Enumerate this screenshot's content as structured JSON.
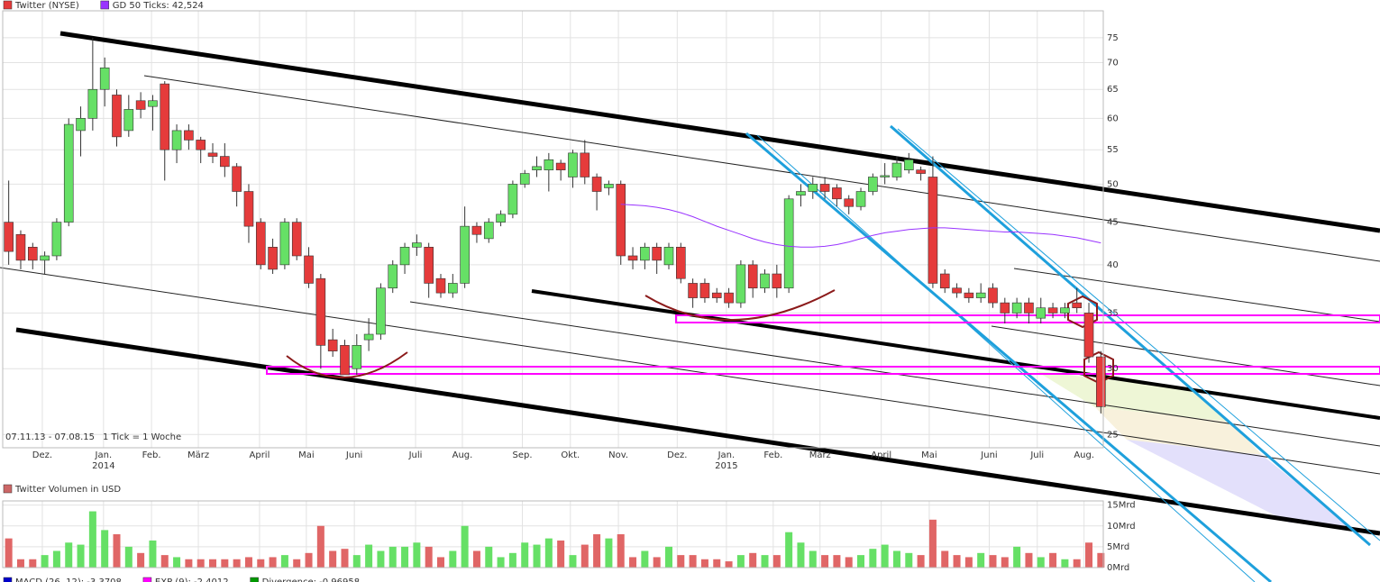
{
  "chart_data": [
    {
      "type": "candlestick",
      "series": [
        {
          "name": "Twitter (NYSE)",
          "color": "#e53b3b",
          "up_color": "#66e066",
          "open": [
            45,
            43.5,
            42,
            40.5,
            41,
            45,
            58,
            60,
            65,
            64,
            58,
            63,
            62,
            66,
            55,
            58,
            56.5,
            54.5,
            54,
            52.5,
            49,
            45,
            42,
            40,
            45,
            41,
            38.5,
            32.5,
            32,
            30,
            32.5,
            33,
            37.5,
            40,
            42,
            42,
            38.5,
            37,
            38,
            44.5,
            43,
            45,
            46,
            50,
            52,
            52,
            53,
            51,
            54.5,
            51,
            49.5,
            50,
            41,
            40.5,
            42,
            40,
            42,
            38,
            38,
            37,
            37,
            36,
            40,
            37.5,
            39,
            37.5,
            48.5,
            49,
            50,
            49.5,
            48,
            47,
            49,
            51,
            51,
            52,
            52,
            51,
            39,
            37.5,
            37,
            36.5,
            37.5,
            36,
            35,
            36,
            34.5,
            35.5,
            35,
            36,
            35,
            31
          ],
          "high": [
            50.5,
            44,
            42.5,
            41.5,
            45.5,
            60,
            62,
            75,
            71,
            65,
            64,
            64.5,
            64,
            66.5,
            59,
            59,
            57,
            56,
            56,
            53,
            50,
            45.5,
            43,
            45.5,
            45.5,
            42,
            39,
            33.5,
            32.5,
            33,
            34.5,
            38,
            40.5,
            42.5,
            43.5,
            42.5,
            39,
            39,
            47,
            45,
            45.5,
            46.5,
            50.5,
            52,
            54,
            54.5,
            53.5,
            55,
            56.5,
            51.5,
            50.5,
            50.5,
            42,
            42.5,
            42.5,
            42.5,
            42.5,
            38.5,
            38.5,
            37.5,
            37.5,
            40.5,
            40.5,
            39.5,
            40,
            48.5,
            50,
            51,
            51,
            50,
            48.5,
            49.5,
            51.5,
            53,
            54,
            54.5,
            52.5,
            54,
            39.5,
            38,
            37.5,
            38,
            38,
            36.5,
            36.5,
            36.5,
            36.5,
            36,
            36,
            37.5,
            36,
            31.5
          ],
          "low": [
            40,
            39.5,
            39.5,
            39,
            40.5,
            44.5,
            54,
            58,
            62,
            55.5,
            57,
            60,
            58,
            50.5,
            53,
            55,
            53,
            53,
            51,
            47,
            42.5,
            39.5,
            39,
            39.5,
            40.5,
            37.5,
            30,
            31,
            29.5,
            29.5,
            31.5,
            32.5,
            37,
            39,
            41,
            36.5,
            36.5,
            36.5,
            37.5,
            42.5,
            42.5,
            44.5,
            45.5,
            49.5,
            51,
            49,
            50.5,
            49.5,
            50,
            46.5,
            48.5,
            40,
            39.5,
            39.5,
            39,
            39.5,
            38,
            35.5,
            36,
            36,
            35.5,
            35.5,
            36.5,
            37,
            36.5,
            37,
            47,
            48,
            48,
            47,
            46,
            46.5,
            48.5,
            50,
            50.5,
            51.5,
            50.5,
            37.5,
            37,
            36.5,
            36,
            36,
            35.5,
            34,
            34.5,
            34,
            34,
            34.5,
            34.5,
            35,
            30.5,
            26.5
          ],
          "close": [
            41.5,
            40.5,
            40.5,
            41,
            45,
            59,
            60,
            65,
            69,
            57,
            61.5,
            61.5,
            63,
            55,
            58,
            56.5,
            55,
            54,
            52.5,
            49,
            44.5,
            40,
            39.5,
            45,
            41,
            38,
            32,
            31.5,
            29.5,
            32,
            33,
            37.5,
            40,
            42,
            42.5,
            38,
            37,
            38,
            44.5,
            43.5,
            45,
            46,
            50,
            51.5,
            52.5,
            53.5,
            52,
            54.5,
            51,
            49,
            50,
            41,
            40.5,
            42,
            40.5,
            42,
            38.5,
            36.5,
            36.5,
            36.5,
            36,
            40,
            37.5,
            39,
            37.5,
            48,
            49,
            50,
            49,
            48,
            47,
            49,
            51,
            51.2,
            53,
            53.5,
            51.5,
            38,
            37.5,
            37,
            36.5,
            37,
            36,
            35,
            36,
            35,
            35.5,
            35,
            35.5,
            35.5,
            31,
            27
          ]
        },
        {
          "name": "GD 50 Ticks: 42,524",
          "color": "#9933ff",
          "values": [
            null,
            null,
            null,
            null,
            null,
            null,
            null,
            null,
            null,
            null,
            null,
            null,
            null,
            null,
            null,
            null,
            null,
            null,
            null,
            null,
            null,
            null,
            null,
            null,
            null,
            null,
            null,
            null,
            null,
            null,
            null,
            null,
            null,
            null,
            null,
            null,
            null,
            null,
            null,
            null,
            null,
            null,
            null,
            null,
            null,
            null,
            null,
            null,
            null,
            null,
            null,
            47.3,
            47.2,
            47.1,
            46.9,
            46.6,
            46.2,
            45.7,
            45.1,
            44.5,
            44,
            43.5,
            43,
            42.6,
            42.3,
            42.1,
            42,
            42,
            42.1,
            42.3,
            42.6,
            43,
            43.4,
            43.7,
            43.9,
            44.1,
            44.2,
            44.3,
            44.3,
            44.2,
            44.1,
            44,
            43.9,
            43.8,
            43.8,
            43.7,
            43.6,
            43.5,
            43.3,
            43.1,
            42.8,
            42.5
          ]
        }
      ],
      "log_y": true,
      "grid": true,
      "ylim": [
        24.1,
        80.8
      ],
      "yticks": [
        25,
        30,
        35,
        40,
        45,
        50,
        55,
        60,
        65,
        70,
        75
      ],
      "xlim": [
        -0.5,
        91.2
      ],
      "xticks": [
        {
          "value": 2.8,
          "label": "Dez."
        },
        {
          "value": 7.9,
          "label": "Jan."
        },
        {
          "value": 11.9,
          "label": "Feb."
        },
        {
          "value": 15.8,
          "label": "März"
        },
        {
          "value": 20.9,
          "label": "April"
        },
        {
          "value": 24.8,
          "label": "Mai"
        },
        {
          "value": 28.8,
          "label": "Juni"
        },
        {
          "value": 33.9,
          "label": "Juli"
        },
        {
          "value": 37.8,
          "label": "Aug."
        },
        {
          "value": 42.8,
          "label": "Sep."
        },
        {
          "value": 46.8,
          "label": "Okt."
        },
        {
          "value": 50.8,
          "label": "Nov."
        },
        {
          "value": 55.7,
          "label": "Dez."
        },
        {
          "value": 59.8,
          "label": "Jan."
        },
        {
          "value": 63.7,
          "label": "Feb."
        },
        {
          "value": 67.6,
          "label": "März"
        },
        {
          "value": 72.7,
          "label": "April"
        },
        {
          "value": 76.7,
          "label": "Mai"
        },
        {
          "value": 81.7,
          "label": "Juni"
        },
        {
          "value": 85.7,
          "label": "Juli"
        },
        {
          "value": 89.6,
          "label": "Aug."
        }
      ],
      "year_ticks": [
        {
          "value": 7.9,
          "label": "2014"
        },
        {
          "value": 59.8,
          "label": "2015"
        }
      ],
      "info": [
        "07.11.13 - 07.08.15",
        "1 Tick = 1 Woche"
      ]
    },
    {
      "type": "bar",
      "title": "Twitter Volumen in USD",
      "color": "#cc6666",
      "values": [
        7,
        2,
        2,
        3,
        4,
        6,
        5.5,
        13.5,
        9,
        8,
        5,
        3.5,
        6.5,
        3,
        2.5,
        2,
        2,
        2,
        2,
        2,
        2.5,
        2,
        2.5,
        3,
        2,
        3.5,
        10,
        4,
        4.5,
        3,
        5.5,
        4,
        5,
        5,
        6,
        5,
        2.5,
        4,
        10,
        4,
        5,
        2.5,
        3.5,
        6,
        5.5,
        7,
        6.5,
        3,
        5.5,
        8,
        7,
        8,
        2.5,
        4,
        2.5,
        5,
        3,
        3,
        2,
        2,
        1.5,
        3,
        3.5,
        3,
        3,
        8.5,
        6,
        4,
        3,
        3,
        2.5,
        3,
        4.5,
        5.5,
        4,
        3.5,
        3,
        11.5,
        4,
        3,
        2.5,
        3.5,
        3,
        2.5,
        5,
        3.5,
        2.5,
        3.5,
        2,
        2,
        6,
        3.5
      ],
      "up_color": "#66e066",
      "down_color": "#e06666",
      "ylim": [
        0,
        16
      ],
      "xlim": [
        -0.5,
        91.2
      ],
      "yticks": [
        {
          "value": 0,
          "label": "0Mrd"
        },
        {
          "value": 5,
          "label": "5Mrd"
        },
        {
          "value": 10,
          "label": "10Mrd"
        },
        {
          "value": 15,
          "label": "15Mrd"
        }
      ],
      "grid": true
    }
  ],
  "indicators": [
    {
      "name": "MACD (26, 12): -3,3708",
      "color": "#0000cc"
    },
    {
      "name": "EXP (9): -2,4012",
      "color": "#ff00ff"
    },
    {
      "name": "Divergence: -0,96958",
      "color": "#009900"
    }
  ]
}
